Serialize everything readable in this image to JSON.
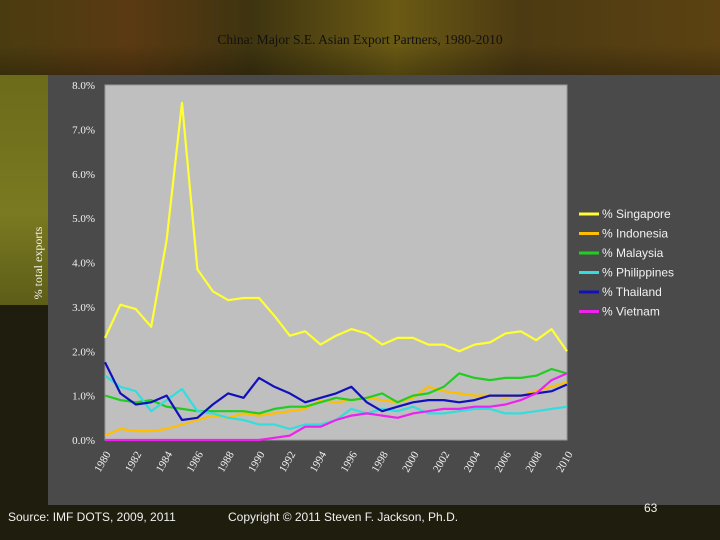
{
  "slide": {
    "source": "Source: IMF DOTS, 2009, 2011",
    "copyright": "Copyright © 2011 Steven F. Jackson, Ph.D.",
    "page_number": "63"
  },
  "chart_data": {
    "type": "line",
    "title": "China: Major S.E. Asian Export Partners, 1980-2010",
    "ylabel": "% total exports",
    "xlabel": "",
    "ylim": [
      0,
      8
    ],
    "yticks": [
      "0.0%",
      "1.0%",
      "2.0%",
      "3.0%",
      "4.0%",
      "5.0%",
      "6.0%",
      "7.0%",
      "8.0%"
    ],
    "xticks": [
      "1980",
      "1982",
      "1984",
      "1986",
      "1988",
      "1990",
      "1992",
      "1994",
      "1996",
      "1998",
      "2000",
      "2002",
      "2004",
      "2006",
      "2008",
      "2010"
    ],
    "x": [
      1980,
      1981,
      1982,
      1983,
      1984,
      1985,
      1986,
      1987,
      1988,
      1989,
      1990,
      1991,
      1992,
      1993,
      1994,
      1995,
      1996,
      1997,
      1998,
      1999,
      2000,
      2001,
      2002,
      2003,
      2004,
      2005,
      2006,
      2007,
      2008,
      2009,
      2010
    ],
    "legend_position": "right",
    "grid": false,
    "series": [
      {
        "name": "% Singapore",
        "color": "#ffff33",
        "values": [
          2.3,
          3.05,
          2.95,
          2.55,
          4.5,
          7.6,
          3.85,
          3.35,
          3.15,
          3.2,
          3.2,
          2.8,
          2.35,
          2.45,
          2.15,
          2.35,
          2.5,
          2.4,
          2.15,
          2.3,
          2.3,
          2.15,
          2.15,
          2.0,
          2.15,
          2.2,
          2.4,
          2.45,
          2.25,
          2.5,
          2.0
        ]
      },
      {
        "name": "% Indonesia",
        "color": "#ffbf00",
        "values": [
          0.1,
          0.25,
          0.2,
          0.2,
          0.25,
          0.35,
          0.45,
          0.55,
          0.5,
          0.6,
          0.55,
          0.6,
          0.65,
          0.7,
          0.9,
          0.85,
          0.9,
          0.95,
          0.9,
          0.85,
          0.95,
          1.2,
          1.1,
          1.05,
          1.0,
          1.0,
          0.95,
          1.0,
          1.1,
          1.2,
          1.3
        ]
      },
      {
        "name": "% Malaysia",
        "color": "#22cc22",
        "values": [
          1.0,
          0.9,
          0.85,
          0.9,
          0.75,
          0.7,
          0.65,
          0.65,
          0.65,
          0.65,
          0.6,
          0.7,
          0.75,
          0.75,
          0.85,
          0.95,
          0.9,
          0.95,
          1.05,
          0.85,
          1.0,
          1.05,
          1.2,
          1.5,
          1.4,
          1.35,
          1.4,
          1.4,
          1.45,
          1.6,
          1.5
        ]
      },
      {
        "name": "% Philippines",
        "color": "#33dddd",
        "values": [
          1.45,
          1.2,
          1.1,
          0.65,
          0.9,
          1.15,
          0.65,
          0.6,
          0.5,
          0.45,
          0.35,
          0.35,
          0.25,
          0.35,
          0.35,
          0.45,
          0.7,
          0.6,
          0.7,
          0.65,
          0.75,
          0.6,
          0.6,
          0.65,
          0.7,
          0.7,
          0.6,
          0.6,
          0.65,
          0.7,
          0.75
        ]
      },
      {
        "name": "% Thailand",
        "color": "#1111bb",
        "values": [
          1.75,
          1.05,
          0.8,
          0.85,
          1.0,
          0.45,
          0.5,
          0.8,
          1.05,
          0.95,
          1.4,
          1.2,
          1.05,
          0.85,
          0.95,
          1.05,
          1.2,
          0.85,
          0.65,
          0.75,
          0.85,
          0.9,
          0.9,
          0.85,
          0.9,
          1.0,
          1.0,
          1.0,
          1.05,
          1.1,
          1.25
        ]
      },
      {
        "name": "% Vietnam",
        "color": "#ee22ee",
        "values": [
          0.0,
          0.0,
          0.0,
          0.0,
          0.0,
          0.0,
          0.0,
          0.0,
          0.0,
          0.0,
          0.0,
          0.05,
          0.1,
          0.3,
          0.3,
          0.45,
          0.55,
          0.6,
          0.55,
          0.5,
          0.6,
          0.65,
          0.7,
          0.7,
          0.75,
          0.75,
          0.8,
          0.9,
          1.05,
          1.35,
          1.5
        ]
      }
    ]
  }
}
